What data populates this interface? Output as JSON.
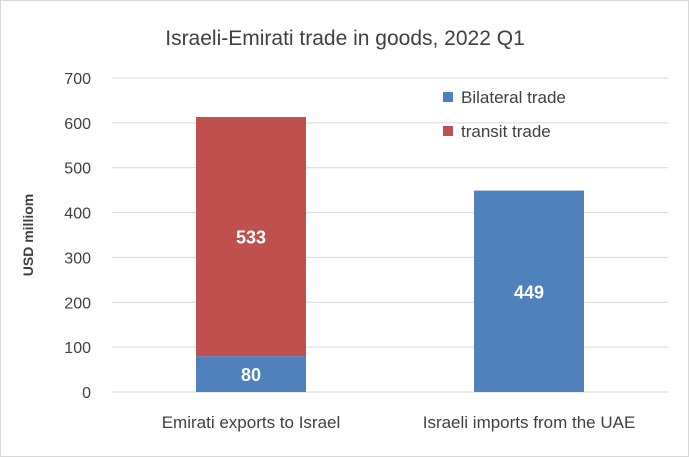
{
  "chart_data": {
    "type": "bar",
    "stacked": true,
    "title": "Israeli-Emirati trade in goods, 2022 Q1",
    "ylabel": "USD milliom",
    "xlabel": "",
    "ylim": [
      0,
      700
    ],
    "yticks": [
      0,
      100,
      200,
      300,
      400,
      500,
      600,
      700
    ],
    "grid": true,
    "legend_position": "top-right",
    "categories": [
      "Emirati exports to Israel",
      "Israeli imports from the UAE"
    ],
    "series": [
      {
        "name": "Bilateral trade",
        "color": "#4f81bd",
        "values": [
          80,
          449
        ]
      },
      {
        "name": "transit trade",
        "color": "#c0504d",
        "values": [
          533,
          0
        ]
      }
    ],
    "data_labels": [
      {
        "category": "Emirati exports to Israel",
        "series": "Bilateral trade",
        "text": "80"
      },
      {
        "category": "Emirati exports to Israel",
        "series": "transit trade",
        "text": "533"
      },
      {
        "category": "Israeli imports from the UAE",
        "series": "Bilateral trade",
        "text": "449"
      }
    ]
  }
}
